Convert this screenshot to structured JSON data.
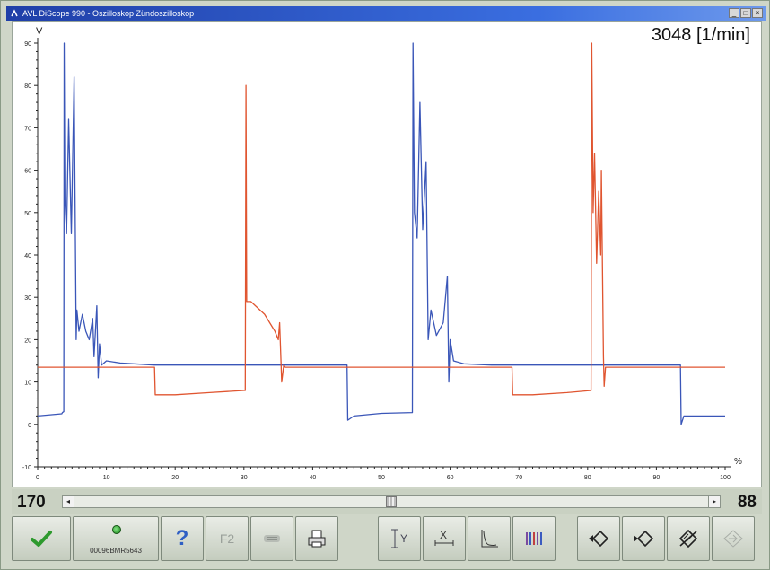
{
  "window": {
    "title": "AVL DiScope 990 - Oszilloskop Zündoszilloskop",
    "controls": [
      "_",
      "□",
      "×"
    ]
  },
  "readout": {
    "rpm": "3048 [1/min]"
  },
  "chart_data": {
    "type": "line",
    "ylabel": "V",
    "xlabel": "%",
    "xlim": [
      0,
      100
    ],
    "ylim": [
      -10,
      90
    ],
    "x_ticks": [
      "0",
      "10",
      "20",
      "30",
      "40",
      "50",
      "60",
      "70",
      "80",
      "90",
      "100"
    ],
    "y_ticks": [
      "-10",
      "0",
      "10",
      "20",
      "30",
      "40",
      "50",
      "60",
      "70",
      "80",
      "90"
    ],
    "grid": false,
    "series": [
      {
        "color": "#3a56b8",
        "points": [
          [
            0,
            2
          ],
          [
            3.5,
            2.5
          ],
          [
            3.6,
            2.8
          ],
          [
            3.8,
            3
          ],
          [
            3.85,
            90
          ],
          [
            3.95,
            53
          ],
          [
            4.2,
            45
          ],
          [
            4.5,
            72
          ],
          [
            4.9,
            45
          ],
          [
            5.3,
            82
          ],
          [
            5.6,
            20
          ],
          [
            5.7,
            27
          ],
          [
            6,
            22
          ],
          [
            6.5,
            26
          ],
          [
            7,
            22
          ],
          [
            7.5,
            20
          ],
          [
            8,
            25
          ],
          [
            8.2,
            16
          ],
          [
            8.6,
            28
          ],
          [
            8.8,
            11
          ],
          [
            9,
            19
          ],
          [
            9.3,
            14
          ],
          [
            10,
            15
          ],
          [
            12,
            14.5
          ],
          [
            14,
            14.3
          ],
          [
            17,
            14
          ],
          [
            45,
            14
          ],
          [
            45.1,
            1
          ],
          [
            46,
            2
          ],
          [
            50,
            2.6
          ],
          [
            54.5,
            2.8
          ],
          [
            54.6,
            90
          ],
          [
            54.8,
            50
          ],
          [
            55.2,
            44
          ],
          [
            55.6,
            76
          ],
          [
            56,
            46
          ],
          [
            56.5,
            62
          ],
          [
            56.8,
            20
          ],
          [
            57.2,
            27
          ],
          [
            58,
            21
          ],
          [
            59,
            24
          ],
          [
            59.6,
            35
          ],
          [
            59.8,
            10
          ],
          [
            60,
            20
          ],
          [
            60.5,
            15
          ],
          [
            62,
            14.3
          ],
          [
            66,
            14
          ],
          [
            93.5,
            14
          ],
          [
            93.6,
            0
          ],
          [
            94,
            2
          ],
          [
            100,
            2
          ]
        ]
      },
      {
        "color": "#e05530",
        "points": [
          [
            0,
            13.5
          ],
          [
            17,
            13.5
          ],
          [
            17.1,
            7
          ],
          [
            20,
            7
          ],
          [
            25,
            7.5
          ],
          [
            30,
            8
          ],
          [
            30.2,
            8
          ],
          [
            30.3,
            80
          ],
          [
            30.4,
            29
          ],
          [
            31,
            29
          ],
          [
            33,
            26
          ],
          [
            34.5,
            22
          ],
          [
            35,
            20
          ],
          [
            35.2,
            24
          ],
          [
            35.5,
            10
          ],
          [
            35.8,
            14
          ],
          [
            36,
            13.5
          ],
          [
            69,
            13.5
          ],
          [
            69.1,
            7
          ],
          [
            72,
            7
          ],
          [
            77,
            7.5
          ],
          [
            80.5,
            8
          ],
          [
            80.6,
            90
          ],
          [
            80.8,
            50
          ],
          [
            81,
            64
          ],
          [
            81.3,
            38
          ],
          [
            81.6,
            55
          ],
          [
            81.9,
            40
          ],
          [
            82,
            60
          ],
          [
            82.3,
            16
          ],
          [
            82.4,
            9
          ],
          [
            82.6,
            13.5
          ],
          [
            100,
            13.5
          ]
        ]
      }
    ]
  },
  "scrollbar": {
    "left_value": "170",
    "right_value": "88",
    "left_arrow": "◂",
    "right_arrow": "▸",
    "position": 0.5
  },
  "toolbar": {
    "ok_icon": "check-icon",
    "serial": "00096BMR5643",
    "help_label": "?",
    "f2_label": "F2",
    "buttons": [
      {
        "name": "check-button",
        "icon": "check-icon"
      },
      {
        "name": "device-status-button",
        "icon": "led-icon"
      },
      {
        "name": "help-button",
        "icon": "question-icon"
      },
      {
        "name": "f2-button",
        "icon": "f2-icon"
      },
      {
        "name": "clipboard-button",
        "icon": "clipboard-icon"
      },
      {
        "name": "print-button",
        "icon": "printer-icon"
      },
      {
        "name": "y-cursor-button",
        "icon": "y-cursor-icon"
      },
      {
        "name": "x-cursor-button",
        "icon": "x-cursor-icon"
      },
      {
        "name": "curve-view-button",
        "icon": "curve-icon"
      },
      {
        "name": "bar-display-button",
        "icon": "bars-icon"
      },
      {
        "name": "previous-button",
        "icon": "diamond-left-icon"
      },
      {
        "name": "next-button",
        "icon": "diamond-right-icon"
      },
      {
        "name": "trigger-button",
        "icon": "trigger-icon"
      },
      {
        "name": "exit-button",
        "icon": "exit-icon"
      }
    ]
  }
}
